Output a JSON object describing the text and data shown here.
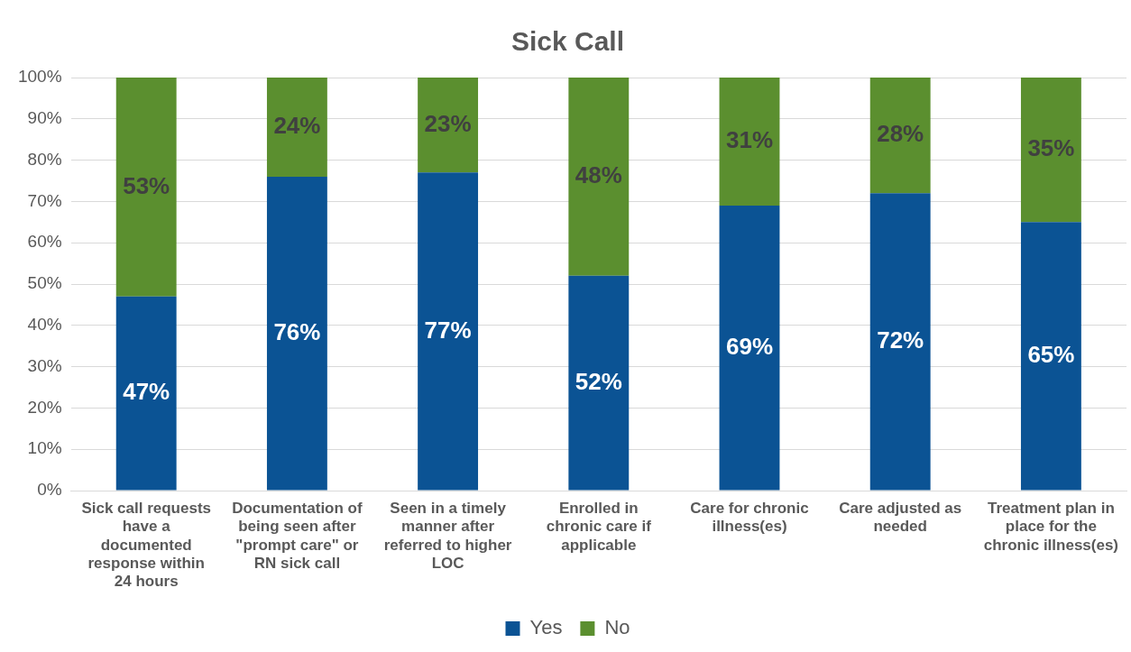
{
  "chart_data": {
    "type": "bar",
    "title": "Sick Call",
    "stacked": true,
    "grid": "y",
    "legend": "bottom",
    "categories": [
      "Sick call requests have a documented response within 24 hours",
      "Documentation of being seen after \"prompt care\" or RN sick call",
      "Seen in a timely manner after referred to higher LOC",
      "Enrolled in chronic care if applicable",
      "Care for chronic illness(es)",
      "Care adjusted as needed",
      "Treatment plan in place for the chronic illness(es)"
    ],
    "series": [
      {
        "name": "Yes",
        "color": "#0b5394",
        "values": [
          47,
          76,
          77,
          52,
          69,
          72,
          65
        ],
        "value_labels": [
          "47%",
          "76%",
          "77%",
          "52%",
          "69%",
          "72%",
          "65%"
        ]
      },
      {
        "name": "No",
        "color": "#5b8f2f",
        "values": [
          53,
          24,
          23,
          48,
          31,
          28,
          35
        ],
        "value_labels": [
          "53%",
          "24%",
          "23%",
          "48%",
          "31%",
          "28%",
          "35%"
        ]
      }
    ],
    "ylim": [
      0,
      100
    ],
    "yticks": [
      {
        "value": 0,
        "label": "0%"
      },
      {
        "value": 10,
        "label": "10%"
      },
      {
        "value": 20,
        "label": "20%"
      },
      {
        "value": 30,
        "label": "30%"
      },
      {
        "value": 40,
        "label": "40%"
      },
      {
        "value": 50,
        "label": "50%"
      },
      {
        "value": 60,
        "label": "60%"
      },
      {
        "value": 70,
        "label": "70%"
      },
      {
        "value": 80,
        "label": "80%"
      },
      {
        "value": 90,
        "label": "90%"
      },
      {
        "value": 100,
        "label": "100%"
      }
    ]
  }
}
